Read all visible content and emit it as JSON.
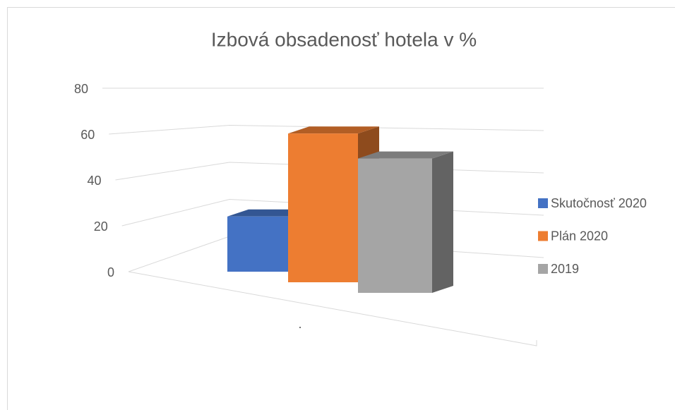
{
  "chart_data": {
    "type": "bar3d",
    "title": "Izbová obsadenosť hotela v %",
    "categories": [
      "."
    ],
    "series": [
      {
        "name": "Skutočnosť 2020",
        "color": "#4472c4",
        "values": [
          23
        ]
      },
      {
        "name": "Plán 2020",
        "color": "#ed7d31",
        "values": [
          62
        ]
      },
      {
        "name": "2019",
        "color": "#a5a5a5",
        "values": [
          56
        ]
      }
    ],
    "ylim": [
      0,
      80
    ],
    "yticks": [
      0,
      20,
      40,
      60,
      80
    ],
    "grid": true,
    "legend": "right"
  }
}
